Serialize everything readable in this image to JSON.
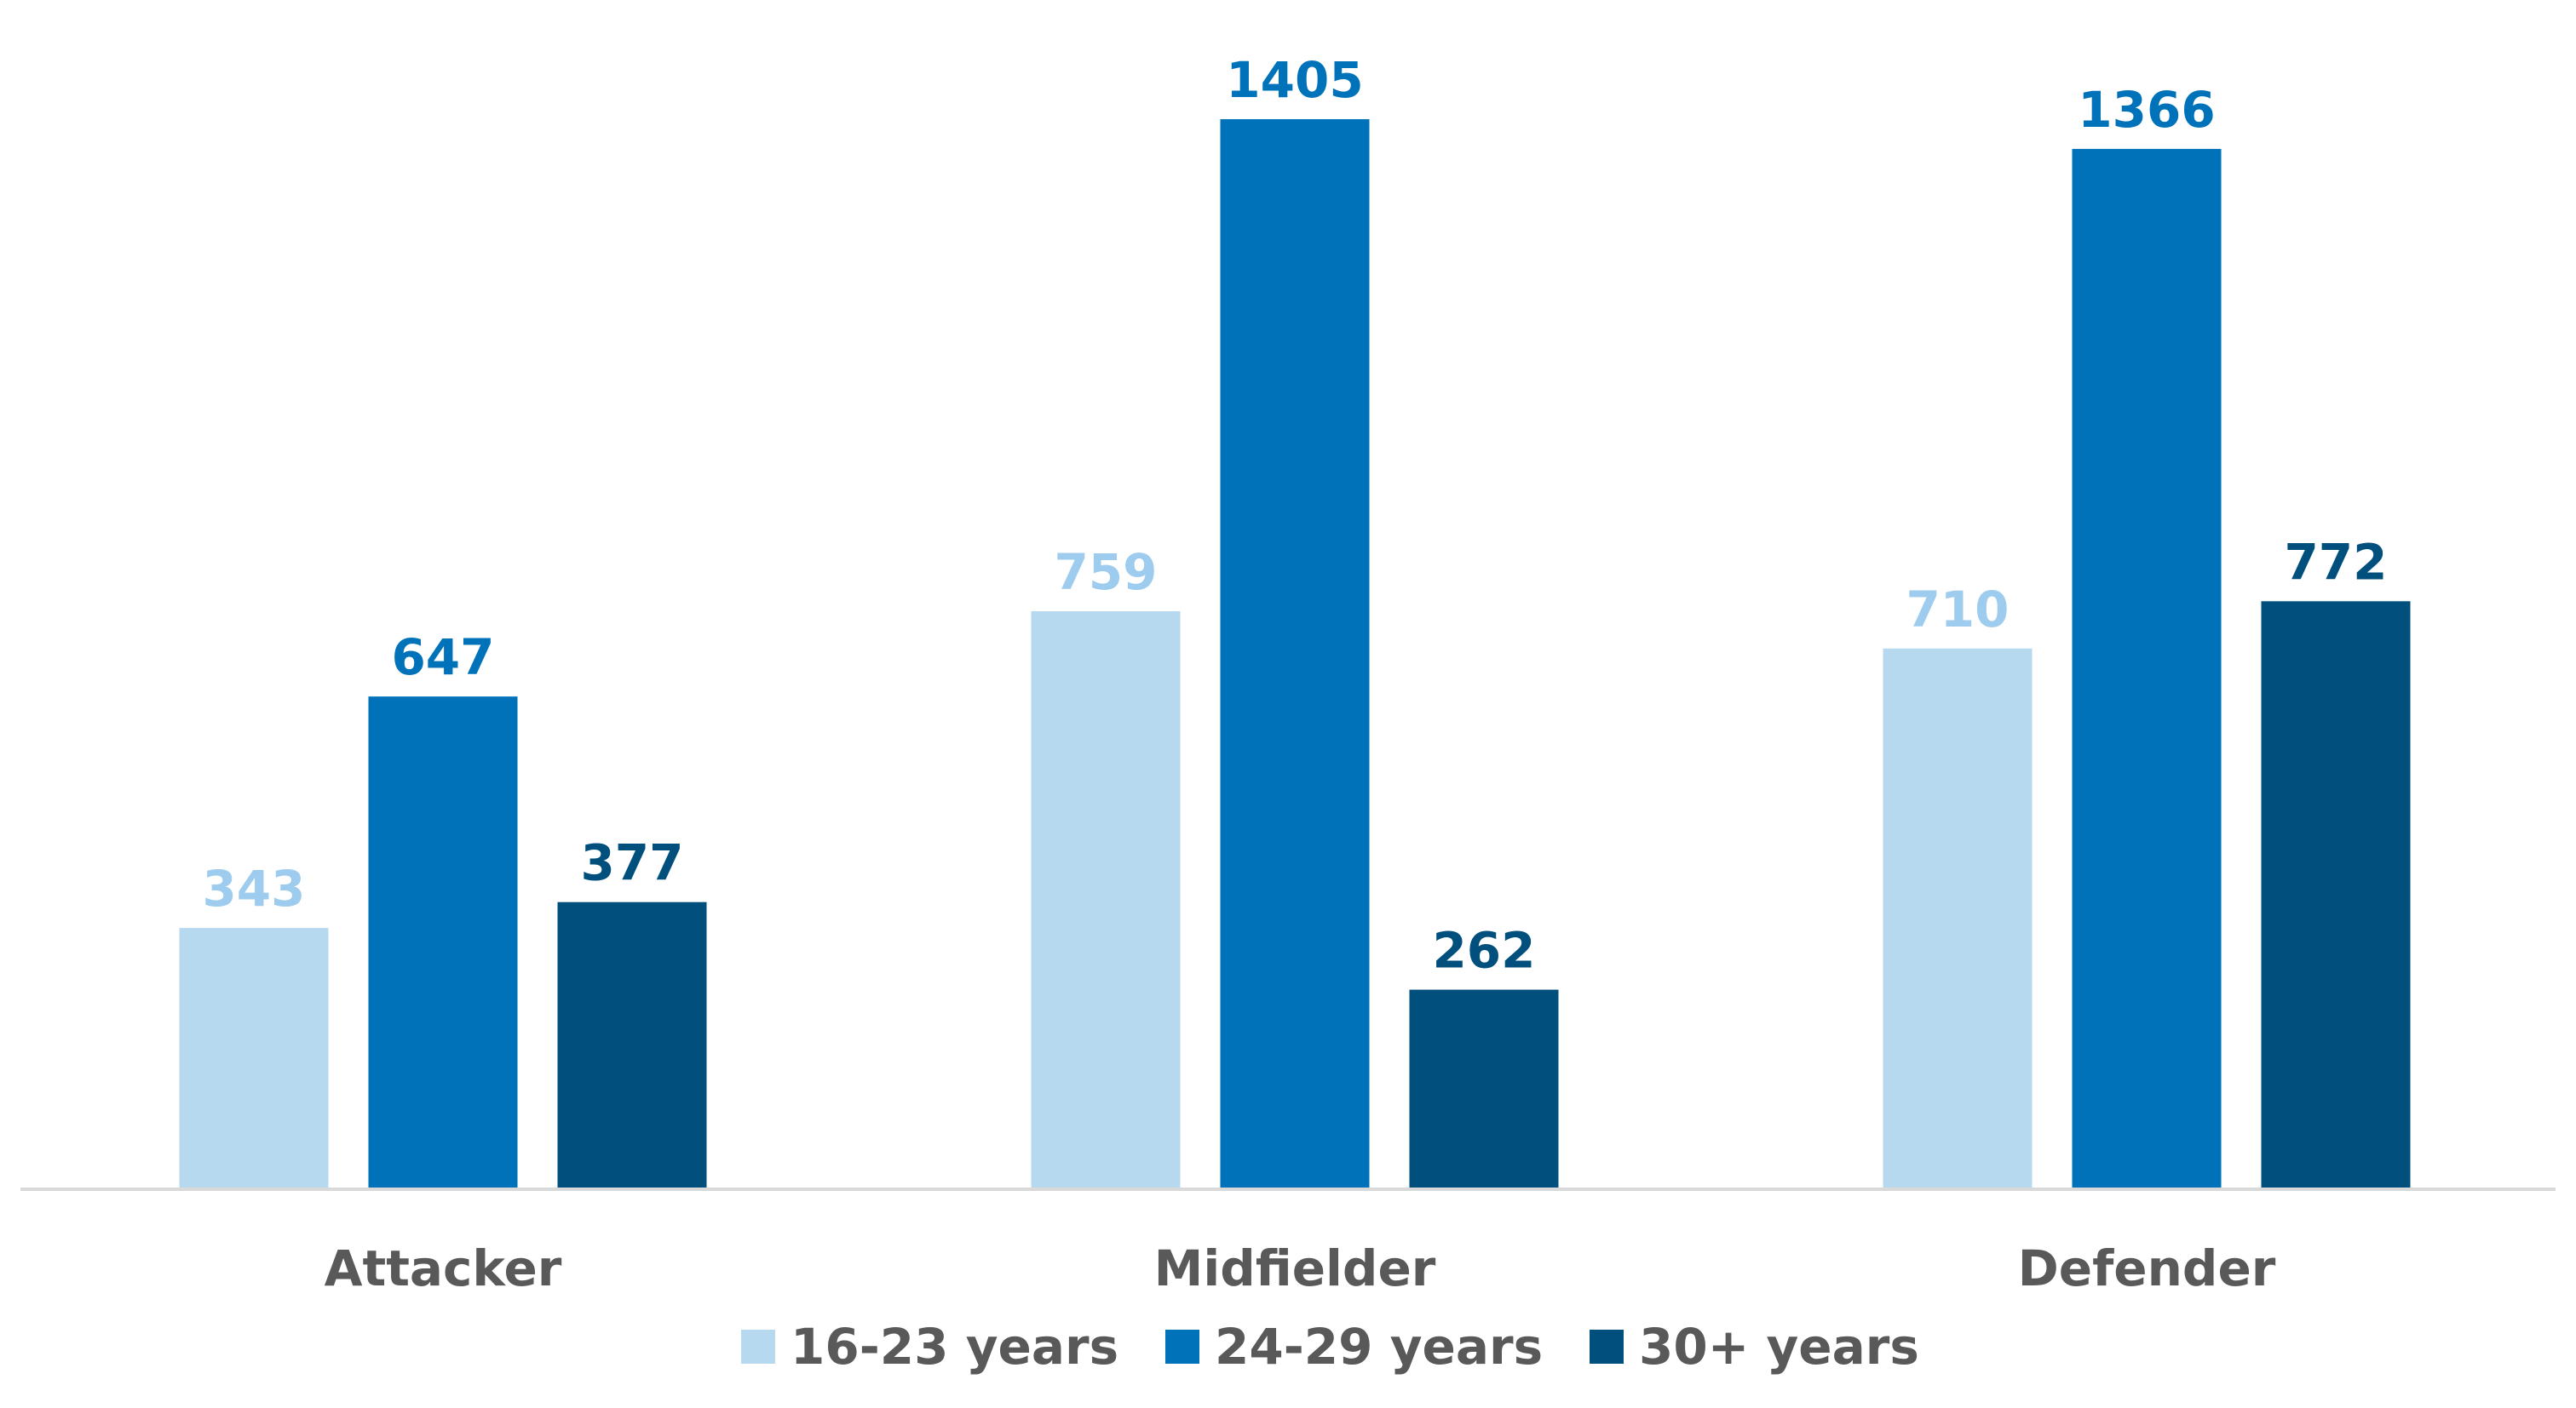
{
  "chart_data": {
    "type": "bar",
    "title": "",
    "xlabel": "",
    "ylabel": "",
    "categories": [
      "Attacker",
      "Midfielder",
      "Defender"
    ],
    "series": [
      {
        "name": "16-23 years",
        "values": [
          343,
          759,
          710
        ],
        "color": "#B7D9F0",
        "label_color": "#9DCCEE"
      },
      {
        "name": "24-29 years",
        "values": [
          647,
          1405,
          1366
        ],
        "color": "#0072BA",
        "label_color": "#0072BA"
      },
      {
        "name": "30+ years",
        "values": [
          377,
          262,
          772
        ],
        "color": "#004F7C",
        "label_color": "#004F7C"
      }
    ],
    "ylim": [
      0,
      1405
    ],
    "grid": false,
    "legend_position": "bottom",
    "axis_color": "#D9D9D9"
  }
}
